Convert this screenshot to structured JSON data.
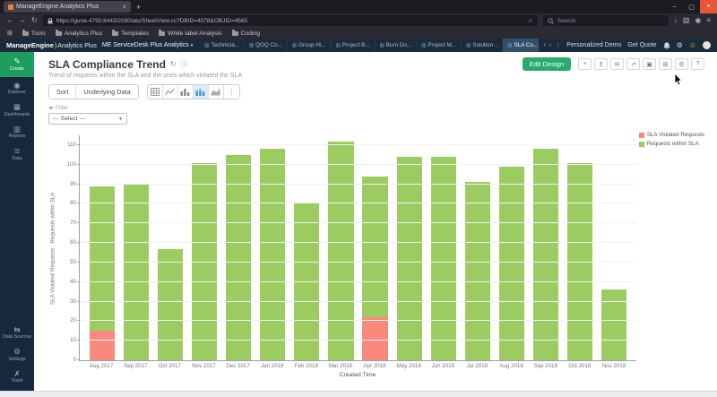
{
  "browser": {
    "tab_title": "ManageEngine Analytics Plus",
    "url": "https://guna-4792:8443/2090/ats/SheetView.cc?DBID=4078&OBJID=4565",
    "search_placeholder": "Search",
    "bookmarks": [
      "Tools",
      "Analytics Plus",
      "Templates",
      "White label Analysis",
      "Coding"
    ]
  },
  "app_header": {
    "brand": "ManageEngine",
    "product": "Analytics Plus",
    "workspace": "ME ServiceDesk Plus Analytics",
    "tabs": [
      {
        "label": "Technicia...",
        "active": false
      },
      {
        "label": "QOQ Co...",
        "active": false
      },
      {
        "label": "Group Hi...",
        "active": false
      },
      {
        "label": "Project B...",
        "active": false
      },
      {
        "label": "Burn Do...",
        "active": false
      },
      {
        "label": "Project M...",
        "active": false
      },
      {
        "label": "Solution ..",
        "active": false
      },
      {
        "label": "SLA Co...",
        "active": true
      }
    ],
    "personalized_demo": "Personalized Demo",
    "get_quote": "Get Quote"
  },
  "sidebar": {
    "items": [
      {
        "label": "Create",
        "icon": "pencil-icon",
        "accent": true
      },
      {
        "label": "Explorer",
        "icon": "compass-icon"
      },
      {
        "label": "Dashboards",
        "icon": "dashboard-icon"
      },
      {
        "label": "Reports",
        "icon": "reports-icon"
      },
      {
        "label": "Data",
        "icon": "database-icon"
      },
      {
        "label": "Data Sources",
        "icon": "data-sources-icon",
        "group": "bottom"
      },
      {
        "label": "Settings",
        "icon": "gear-icon",
        "group": "bottom"
      },
      {
        "label": "Trash",
        "icon": "trash-icon",
        "group": "bottom"
      }
    ]
  },
  "report": {
    "title": "SLA Compliance Trend",
    "subtitle": "Trend of requests within the SLA and the ones which violated the SLA",
    "edit_design_label": "Edit Design",
    "sort_label": "Sort",
    "underlying_data_label": "Underlying Data",
    "filter_label": "Filter",
    "filter_value": "--- Select ---"
  },
  "chart_data": {
    "type": "bar",
    "stacked": true,
    "categories": [
      "Aug 2017",
      "Sep 2017",
      "Oct 2017",
      "Nov 2017",
      "Dec 2017",
      "Jan 2018",
      "Feb 2018",
      "Mar 2018",
      "Apr 2018",
      "May 2018",
      "Jun 2018",
      "Jul 2018",
      "Aug 2018",
      "Sep 2018",
      "Oct 2018",
      "Nov 2018"
    ],
    "series": [
      {
        "name": "SLA Violated Requests",
        "color": "#f9897d",
        "values": [
          15,
          0,
          0,
          0,
          0,
          0,
          0,
          0,
          22,
          0,
          0,
          0,
          0,
          0,
          0,
          0
        ]
      },
      {
        "name": "Requests within SLA",
        "color": "#9ccb62",
        "values": [
          74,
          90,
          57,
          101,
          105,
          108,
          80,
          112,
          72,
          104,
          104,
          91,
          99,
          108,
          101,
          36
        ]
      }
    ],
    "xlabel": "Created Time",
    "ylabel": "SLA Violated Requests , Requests within SLA",
    "ylim": [
      0,
      115
    ],
    "yticks": [
      0,
      10,
      20,
      30,
      40,
      50,
      60,
      70,
      80,
      90,
      100,
      110
    ],
    "legend_position": "top-right",
    "grid": true
  },
  "colors": {
    "bar_red": "#f9897d",
    "bar_green": "#9ccb62",
    "accent_green": "#28ab6c",
    "sidebar_bg": "#16293c"
  }
}
